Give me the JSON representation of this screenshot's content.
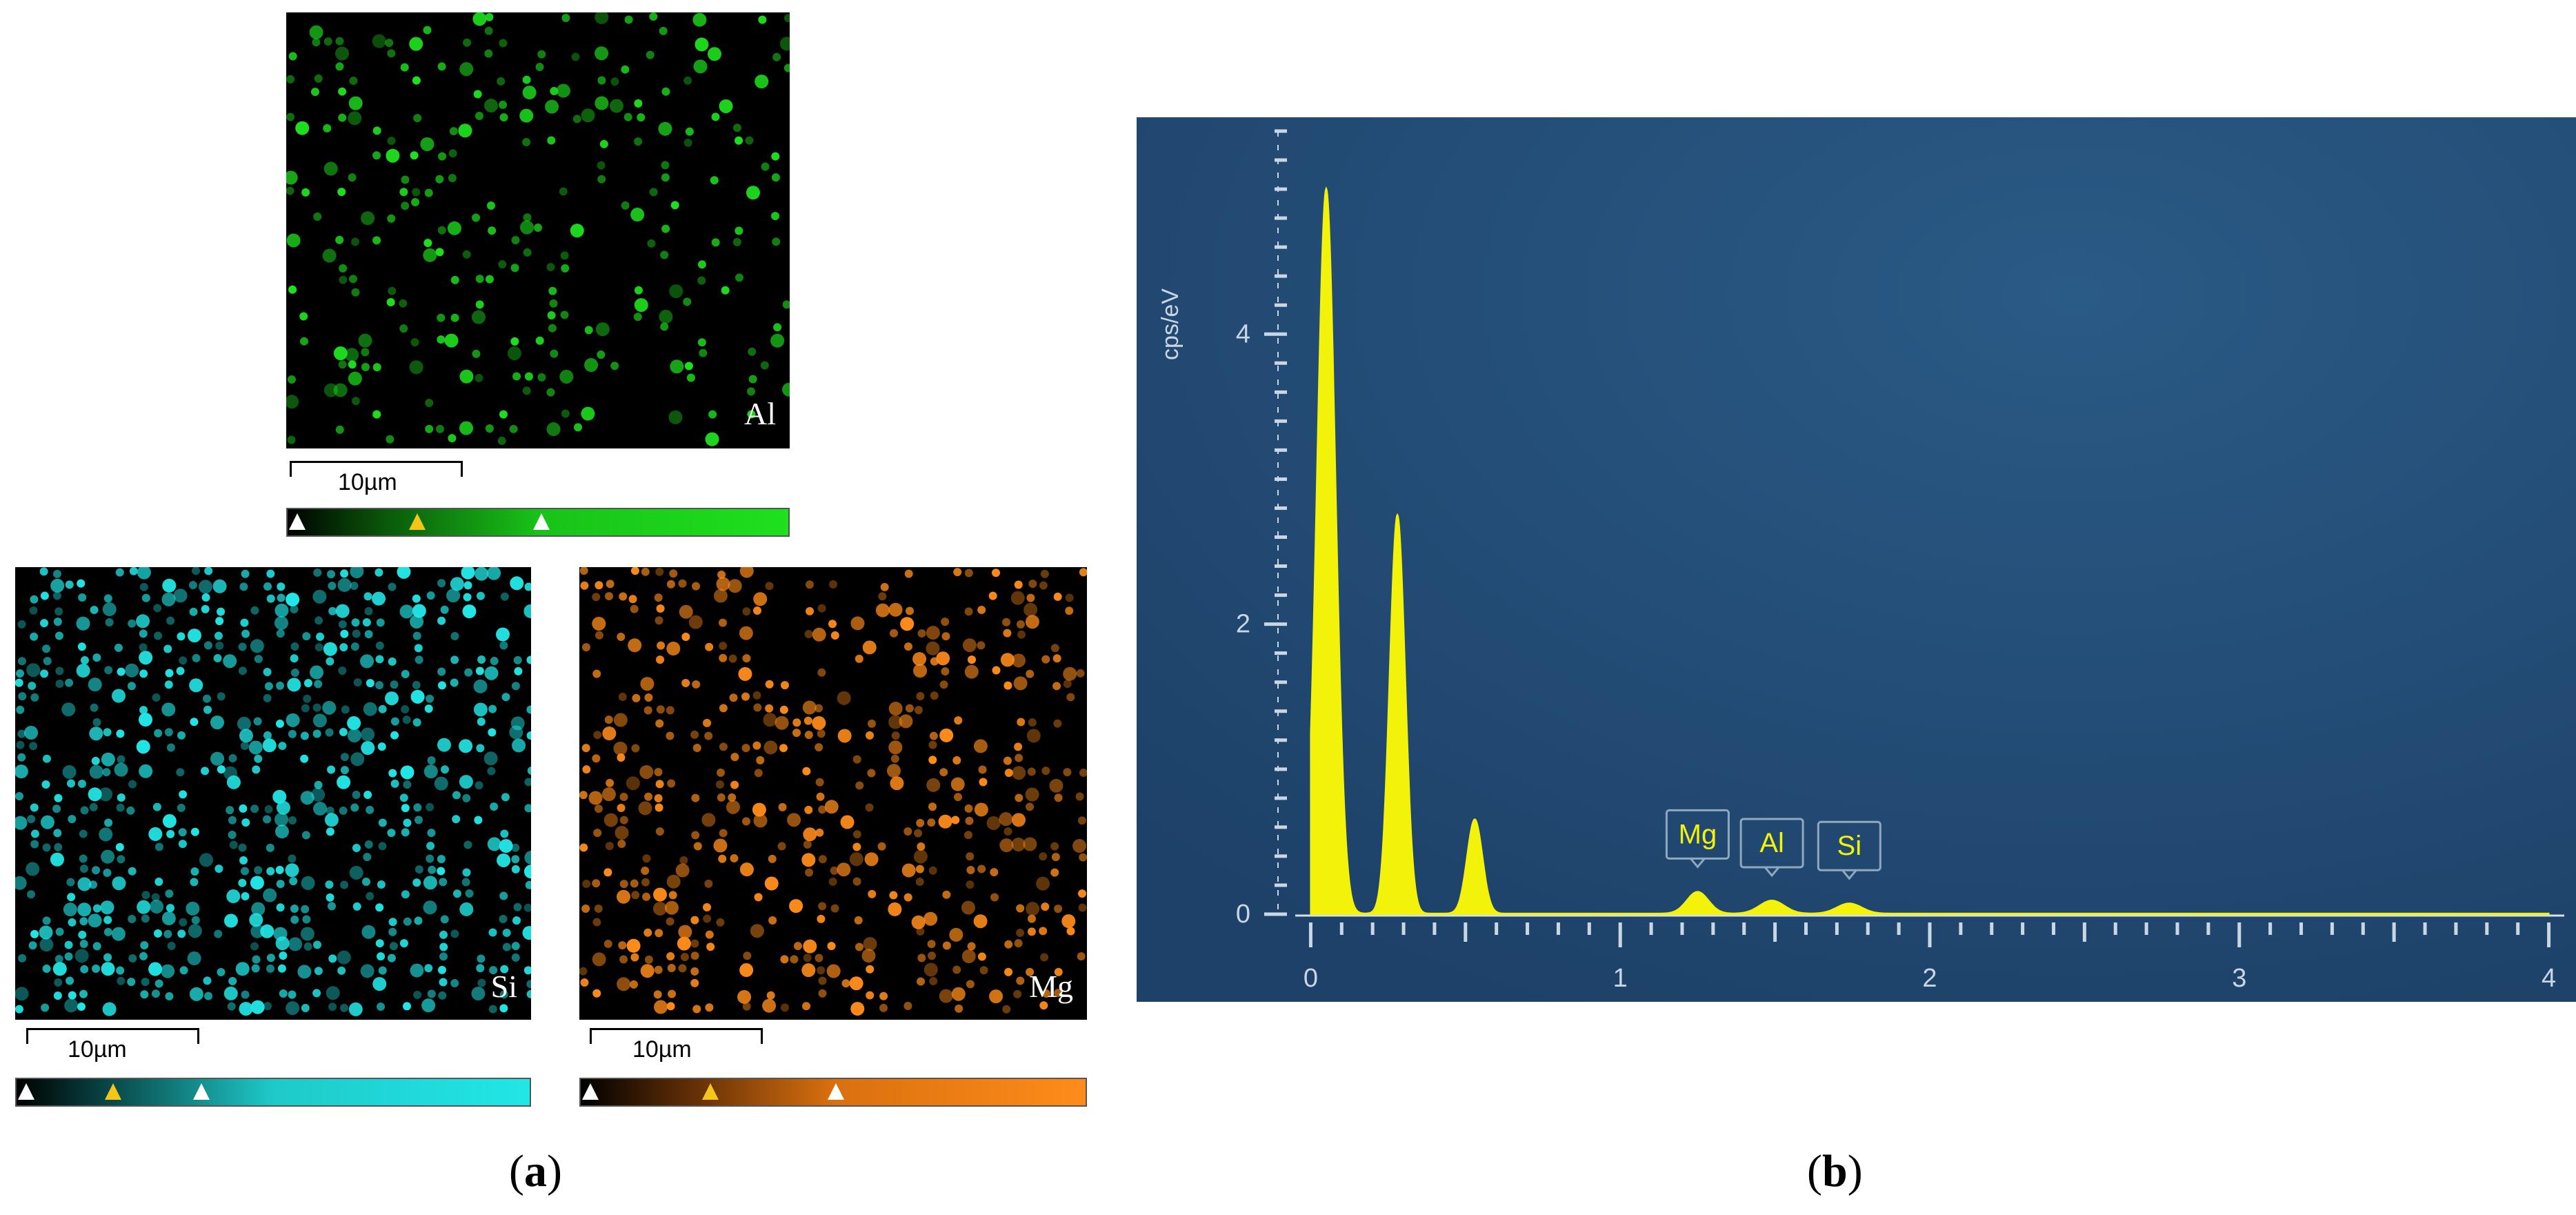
{
  "panel_a": {
    "maps": [
      {
        "element": "Al",
        "scale_label": "10µm",
        "color": "#1ee01e"
      },
      {
        "element": "Si",
        "scale_label": "10µm",
        "color": "#22e6e6"
      },
      {
        "element": "Mg",
        "scale_label": "10µm",
        "color": "#ff8c1a"
      }
    ],
    "caption_letter": "a"
  },
  "panel_b": {
    "caption_letter": "b"
  },
  "chart_data": {
    "type": "line",
    "title": "",
    "xlabel": "",
    "ylabel": "cps/eV",
    "xlim": [
      -0.05,
      4.05
    ],
    "ylim": [
      0,
      5.4
    ],
    "x_ticks": [
      "0",
      "1",
      "2",
      "3",
      "4"
    ],
    "y_ticks": [
      "0",
      "2",
      "4"
    ],
    "series": [
      {
        "peaks": [
          {
            "x": 0.05,
            "y": 5.0,
            "width": 0.03
          },
          {
            "x": 0.28,
            "y": 2.75,
            "width": 0.025
          },
          {
            "x": 0.53,
            "y": 0.65,
            "width": 0.025
          },
          {
            "x": 1.25,
            "y": 0.15,
            "width": 0.035
          },
          {
            "x": 1.49,
            "y": 0.09,
            "width": 0.04
          },
          {
            "x": 1.74,
            "y": 0.07,
            "width": 0.04
          }
        ]
      }
    ],
    "peak_labels": [
      {
        "text": "Mg",
        "x": 1.25
      },
      {
        "text": "Al",
        "x": 1.49
      },
      {
        "text": "Si",
        "x": 1.74
      }
    ],
    "background_color": "#1f4670",
    "line_color": "#f2f20a",
    "grid": false
  }
}
